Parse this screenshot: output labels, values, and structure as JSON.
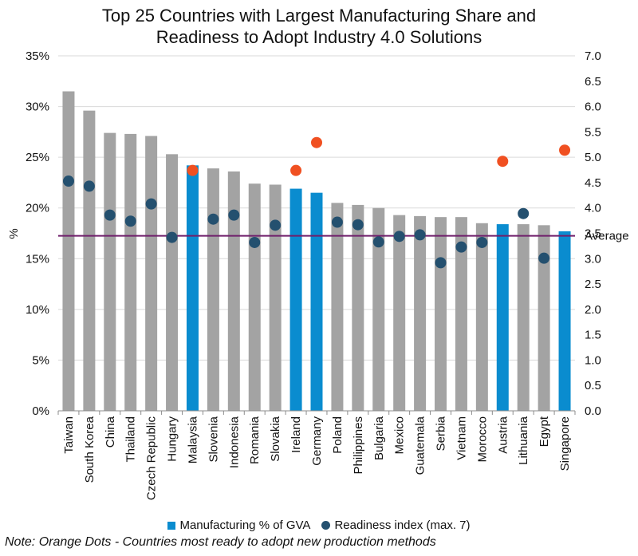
{
  "chart_data": {
    "type": "bar",
    "title_line1": "Top 25 Countries with Largest Manufacturing Share and",
    "title_line2": "Readiness to Adopt Industry 4.0 Solutions",
    "ylabel": "%",
    "ylim": [
      0,
      35
    ],
    "y2lim": [
      0,
      7
    ],
    "y_ticks": [
      "0%",
      "5%",
      "10%",
      "15%",
      "20%",
      "25%",
      "30%",
      "35%"
    ],
    "y2_ticks": [
      "0.0",
      "0.5",
      "1.0",
      "1.5",
      "2.0",
      "2.5",
      "3.0",
      "3.5",
      "4.0",
      "4.5",
      "5.0",
      "5.5",
      "6.0",
      "6.5",
      "7.0"
    ],
    "categories": [
      "Taiwan",
      "South Korea",
      "China",
      "Thailand",
      "Czech Republic",
      "Hungary",
      "Malaysia",
      "Slovenia",
      "Indonesia",
      "Romania",
      "Slovakia",
      "Ireland",
      "Germany",
      "Poland",
      "Philippines",
      "Bulgaria",
      "Mexico",
      "Guatemala",
      "Serbia",
      "Vietnam",
      "Morocco",
      "Austria",
      "Lithuania",
      "Egypt",
      "Singapore"
    ],
    "series": [
      {
        "name": "Manufacturing % of GVA",
        "axis": "left",
        "values": [
          31.5,
          29.6,
          27.4,
          27.3,
          27.1,
          25.3,
          24.2,
          23.9,
          23.6,
          22.4,
          22.3,
          21.9,
          21.5,
          20.5,
          20.3,
          20.0,
          19.3,
          19.2,
          19.1,
          19.1,
          18.5,
          18.4,
          18.4,
          18.3,
          17.7
        ],
        "highlighted": [
          false,
          false,
          false,
          false,
          false,
          false,
          true,
          false,
          false,
          false,
          false,
          true,
          true,
          false,
          false,
          false,
          false,
          false,
          false,
          false,
          false,
          true,
          false,
          false,
          true
        ]
      },
      {
        "name": "Readiness index (max. 7)",
        "axis": "right",
        "values": [
          4.53,
          4.43,
          3.86,
          3.74,
          4.08,
          3.42,
          4.74,
          3.78,
          3.86,
          3.32,
          3.66,
          4.74,
          5.29,
          3.72,
          3.67,
          3.33,
          3.44,
          3.47,
          2.92,
          3.23,
          3.32,
          4.92,
          3.89,
          3.01,
          5.14
        ],
        "most_ready": [
          false,
          false,
          false,
          false,
          false,
          false,
          true,
          false,
          false,
          false,
          false,
          true,
          true,
          false,
          false,
          false,
          false,
          false,
          false,
          false,
          false,
          true,
          false,
          false,
          true
        ]
      }
    ],
    "average_line": {
      "label": "Average",
      "value": 3.45
    },
    "colors": {
      "bar": "#a3a3a3",
      "bar_highlight": "#0a8ccf",
      "dot": "#24506f",
      "dot_ready": "#f05021",
      "average": "#6f1f6b",
      "grid": "#d9d9d9"
    },
    "legend": {
      "bar_label": "Manufacturing % of GVA",
      "dot_label": "Readiness index (max. 7)",
      "placement": "bottom"
    },
    "grid": true,
    "note": "Note: Orange Dots - Countries most ready to adopt new production methods"
  }
}
